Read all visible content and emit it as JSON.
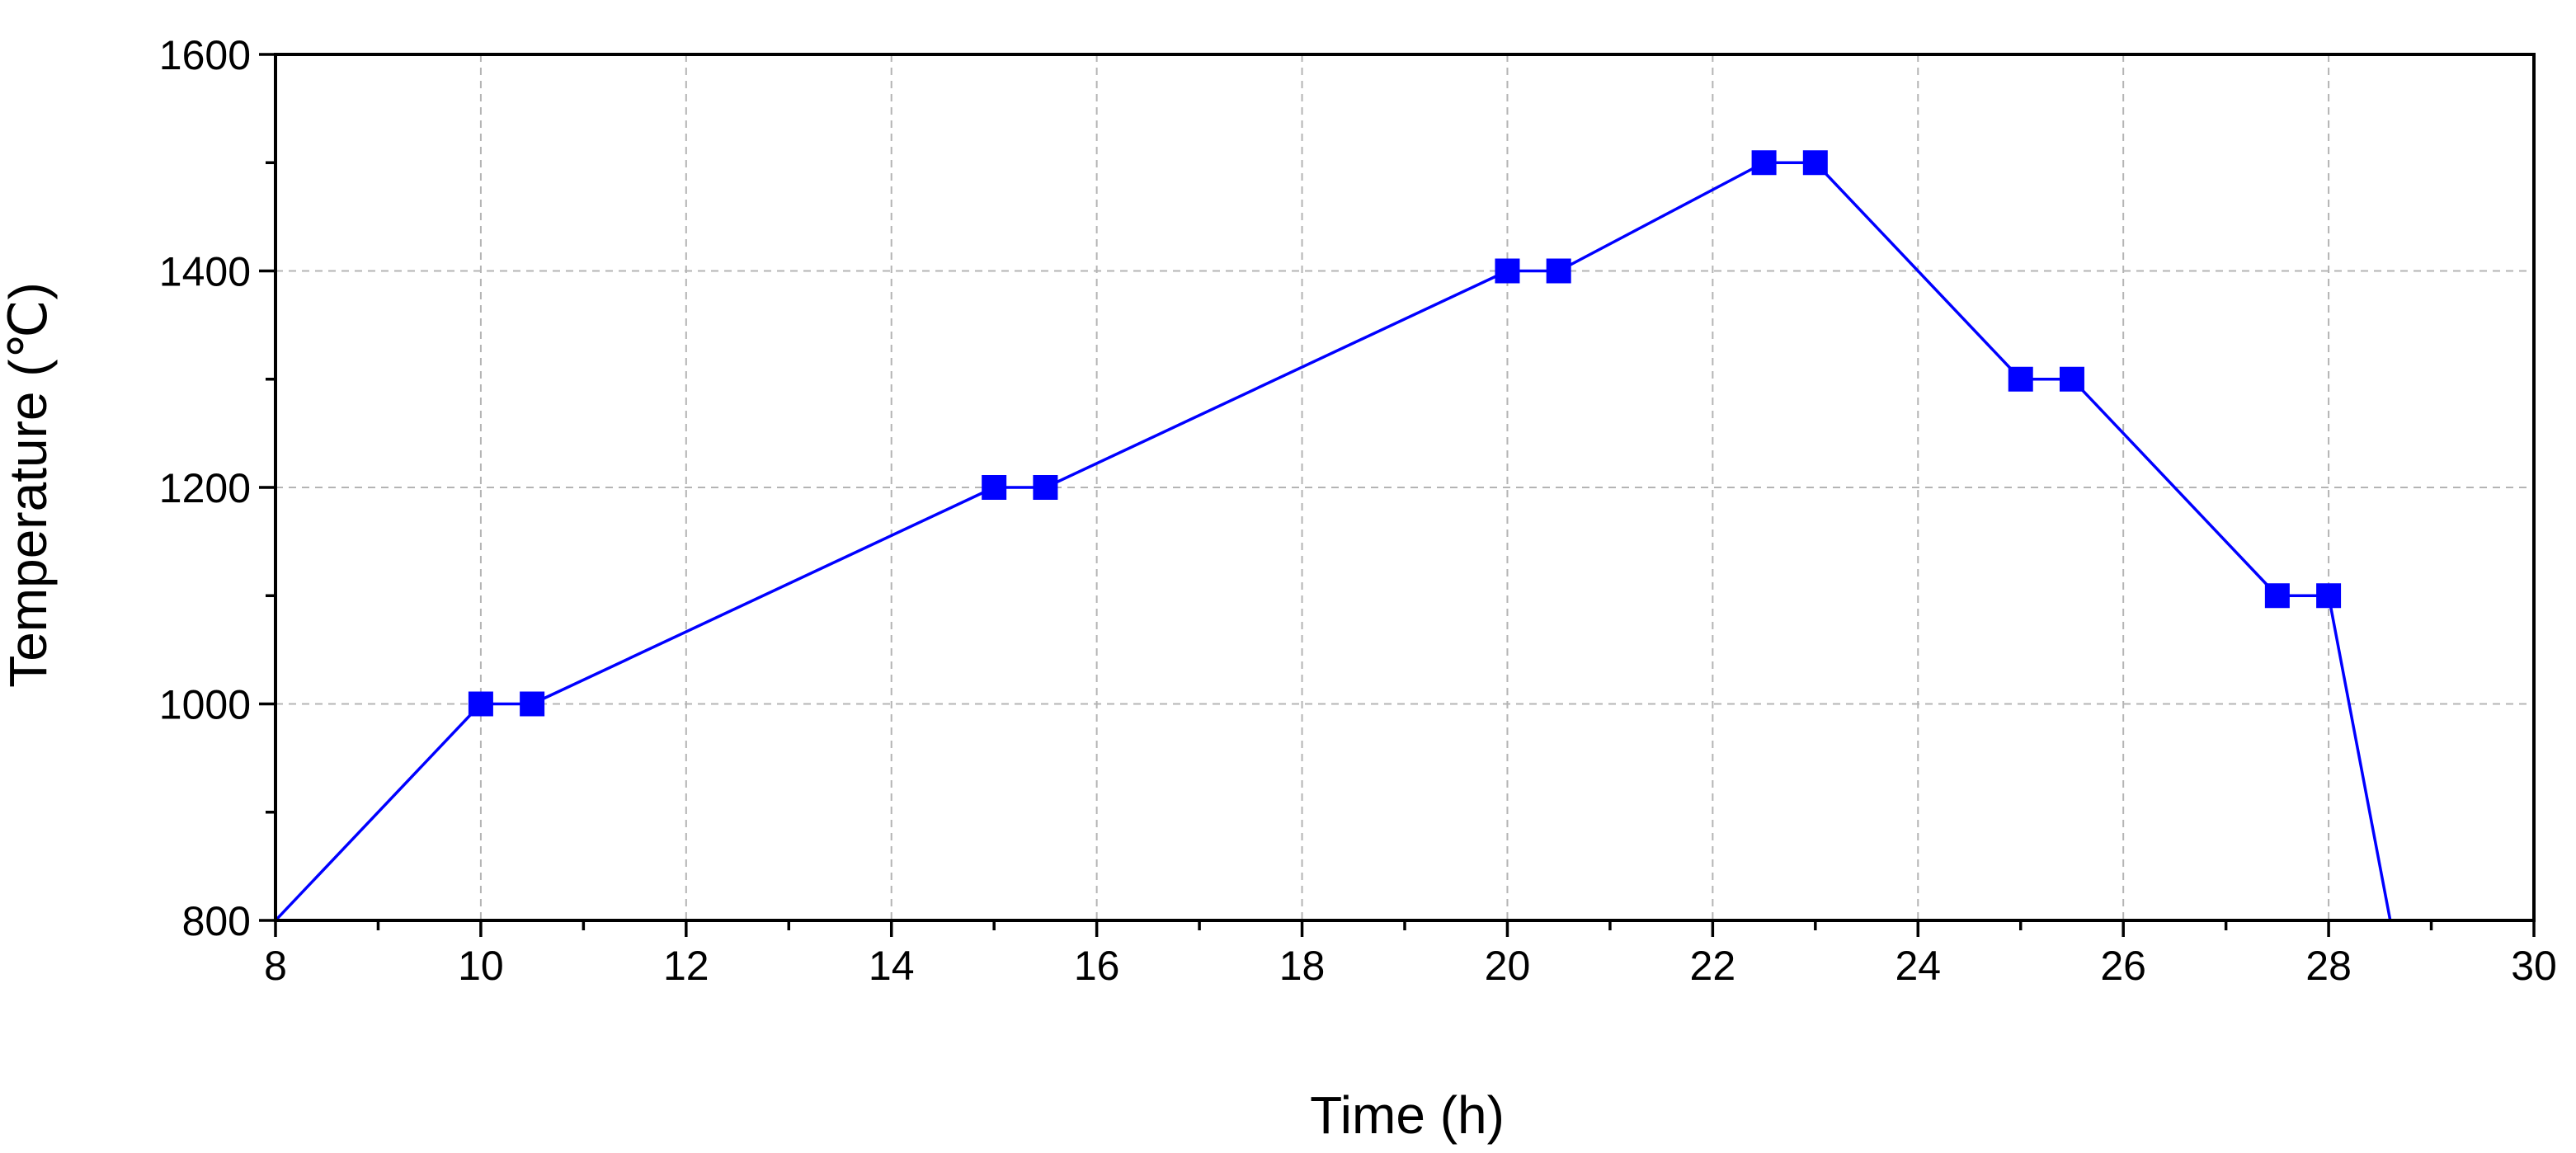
{
  "chart_data": {
    "type": "line",
    "title": "",
    "xlabel": "Time (h)",
    "ylabel": "Temperature (℃)",
    "xlim": [
      8,
      30
    ],
    "ylim": [
      800,
      1600
    ],
    "x_ticks": [
      8,
      10,
      12,
      14,
      16,
      18,
      20,
      22,
      24,
      26,
      28,
      30
    ],
    "y_ticks": [
      800,
      1000,
      1200,
      1400,
      1600
    ],
    "x_tick_labels": [
      "8",
      "10",
      "12",
      "14",
      "16",
      "18",
      "20",
      "22",
      "24",
      "26",
      "28",
      "30"
    ],
    "y_tick_labels": [
      "800",
      "1000",
      "1200",
      "1400",
      "1600"
    ],
    "x_minor_step": 1,
    "y_minor_step": 100,
    "grid": true,
    "grid_style": "dashed",
    "legend": "none",
    "line_color": "#0000ff",
    "marker_color": "#0000ff",
    "marker": "square",
    "line": {
      "x": [
        8,
        10,
        10.5,
        15,
        15.5,
        20,
        20.5,
        22.5,
        23,
        25,
        25.5,
        27.5,
        28,
        28.6
      ],
      "y": [
        800,
        1000,
        1000,
        1200,
        1200,
        1400,
        1400,
        1500,
        1500,
        1300,
        1300,
        1100,
        1100,
        800
      ]
    },
    "markers": {
      "x": [
        10,
        10.5,
        15,
        15.5,
        20,
        20.5,
        22.5,
        23,
        25,
        25.5,
        27.5,
        28
      ],
      "y": [
        1000,
        1000,
        1200,
        1200,
        1400,
        1400,
        1500,
        1500,
        1300,
        1300,
        1100,
        1100
      ]
    }
  }
}
